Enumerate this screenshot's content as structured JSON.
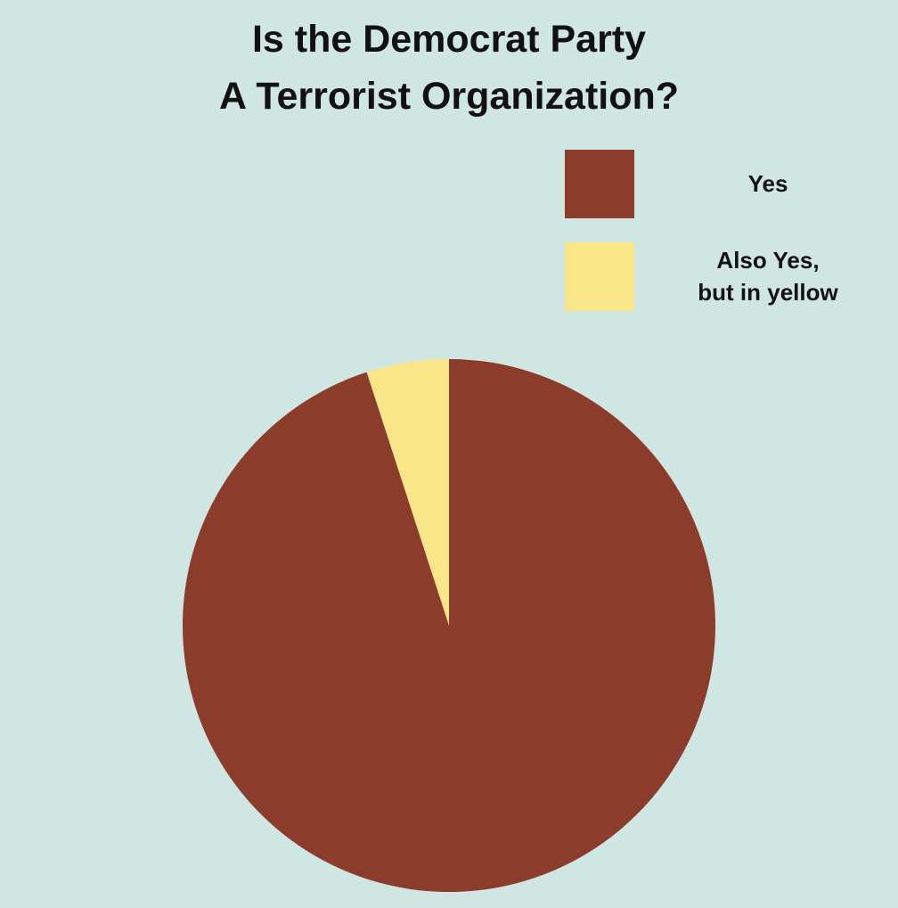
{
  "chart_data": {
    "type": "pie",
    "title": "Is the Democrat Party\nA Terrorist Organization?",
    "categories": [
      "Yes",
      "Also Yes,\nbut in yellow"
    ],
    "values": [
      95,
      5
    ],
    "colors": [
      "#8b3c2a",
      "#f8e689"
    ],
    "legend": "upper right"
  }
}
